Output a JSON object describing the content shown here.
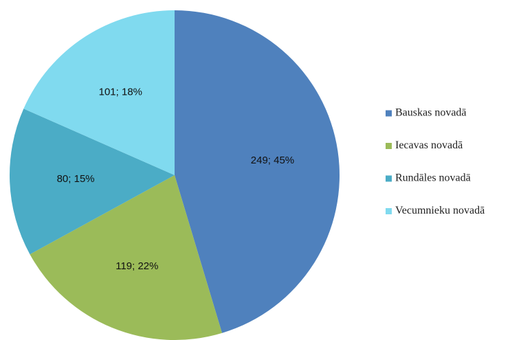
{
  "chart_data": {
    "type": "pie",
    "categories": [
      "Bauskas novadā",
      "Iecavas novadā",
      "Rundāles novadā",
      "Vecumnieku novadā"
    ],
    "values": [
      249,
      119,
      80,
      101
    ],
    "value_labels": [
      "249; 45%",
      "119; 22%",
      "80; 15%",
      "101; 18%"
    ],
    "colors": [
      "#4f81bd",
      "#9bbb59",
      "#4bacc6",
      "#80daef"
    ],
    "legend": "right"
  }
}
